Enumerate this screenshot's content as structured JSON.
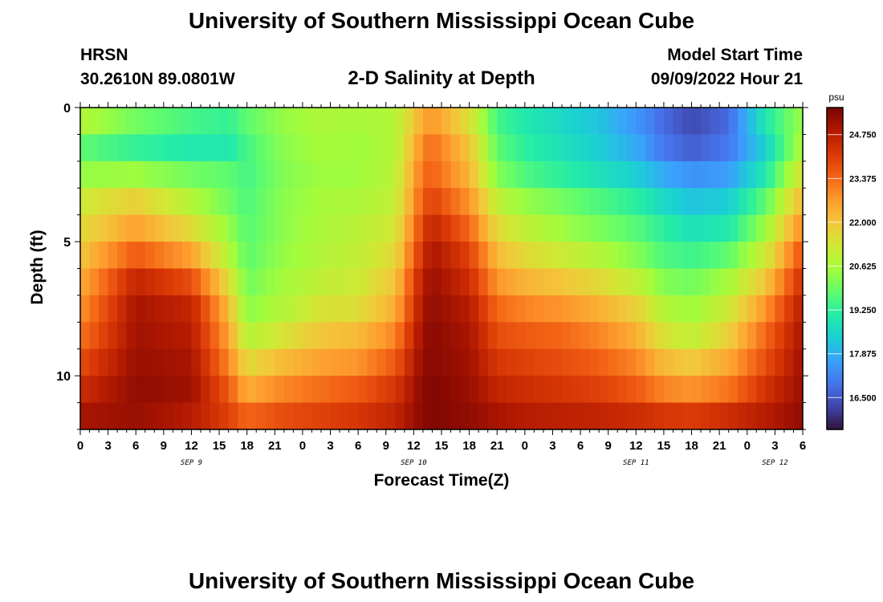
{
  "header": {
    "title": "University of Southern Mississippi Ocean Cube",
    "station": "HRSN",
    "coords": "30.2610N  89.0801W",
    "subtitle": "2-D Salinity at Depth",
    "model_start_label": "Model Start Time",
    "model_start_value": "09/09/2022 Hour 21"
  },
  "footer": {
    "title": "University of Southern Mississippi Ocean Cube"
  },
  "colors": {
    "map": [
      "#30123b",
      "#4145ab",
      "#4675ed",
      "#39a2fc",
      "#1bcfd4",
      "#24eca6",
      "#61fc6c",
      "#a4fc3b",
      "#d1e834",
      "#f3c63a",
      "#fe9b2d",
      "#f36315",
      "#d93806",
      "#b11901",
      "#7a0403"
    ]
  },
  "chart_data": {
    "type": "heatmap",
    "xlabel": "Forecast Time(Z)",
    "ylabel": "Depth (ft)",
    "colorbar_unit": "psu",
    "colorbar_ticks": [
      "24.750",
      "23.375",
      "22.000",
      "20.625",
      "19.250",
      "17.875",
      "16.500"
    ],
    "colorbar_range": [
      15.5,
      25.6
    ],
    "x_hours_range": [
      0,
      78
    ],
    "y_range": [
      0,
      12
    ],
    "y_ticks": [
      0,
      5,
      10
    ],
    "x_ticks": [
      "0",
      "3",
      "6",
      "9",
      "12",
      "15",
      "18",
      "21",
      "0",
      "3",
      "6",
      "9",
      "12",
      "15",
      "18",
      "21",
      "0",
      "3",
      "6",
      "9",
      "12",
      "15",
      "18",
      "21",
      "0",
      "3",
      "6"
    ],
    "date_labels": [
      {
        "label": "SEP 9",
        "hour": 12
      },
      {
        "label": "SEP 10",
        "hour": 36
      },
      {
        "label": "SEP 11",
        "hour": 60
      },
      {
        "label": "SEP 12",
        "hour": 75
      }
    ],
    "depth_layers_ft": [
      0.5,
      1.5,
      2.5,
      3.5,
      4.5,
      5.5,
      6.5,
      7.5,
      8.5,
      9.5,
      10.5,
      11.5
    ],
    "time_hours": [
      0,
      6,
      12,
      16,
      18,
      22,
      26,
      30,
      34,
      37,
      38,
      42,
      45,
      48,
      52,
      56,
      60,
      63,
      66,
      70,
      74,
      78
    ],
    "salinity": [
      [
        20.8,
        20.0,
        19.5,
        19.3,
        19.8,
        20.4,
        20.7,
        20.6,
        20.8,
        22.5,
        22.8,
        21.5,
        19.5,
        19.0,
        18.6,
        18.2,
        17.5,
        16.8,
        16.3,
        16.8,
        19.0,
        20.5
      ],
      [
        19.8,
        19.3,
        19.0,
        19.0,
        19.5,
        20.3,
        20.6,
        20.5,
        20.8,
        23.0,
        23.3,
        22.0,
        19.8,
        19.2,
        18.8,
        18.4,
        17.8,
        17.0,
        16.6,
        17.0,
        18.5,
        20.8
      ],
      [
        20.4,
        20.5,
        20.0,
        19.8,
        19.5,
        20.2,
        20.5,
        20.5,
        20.9,
        23.3,
        23.5,
        22.3,
        20.2,
        19.6,
        19.2,
        18.8,
        18.4,
        17.8,
        17.4,
        17.6,
        19.0,
        21.5
      ],
      [
        21.2,
        21.8,
        20.8,
        20.0,
        19.6,
        20.3,
        20.6,
        20.7,
        21.0,
        23.6,
        24.0,
        22.8,
        21.0,
        20.4,
        20.0,
        19.6,
        19.2,
        18.6,
        18.2,
        18.4,
        19.8,
        22.3
      ],
      [
        21.6,
        22.6,
        21.6,
        20.4,
        19.7,
        20.3,
        20.7,
        20.9,
        21.3,
        24.0,
        24.6,
        23.4,
        21.6,
        21.0,
        20.5,
        20.1,
        19.7,
        19.2,
        18.8,
        19.0,
        20.5,
        23.0
      ],
      [
        22.0,
        23.6,
        22.6,
        20.8,
        19.8,
        20.4,
        20.8,
        21.0,
        21.6,
        24.4,
        25.0,
        24.0,
        22.2,
        21.6,
        21.2,
        20.8,
        20.2,
        19.6,
        19.4,
        19.8,
        21.2,
        23.8
      ],
      [
        22.4,
        24.6,
        23.8,
        21.6,
        20.0,
        20.6,
        21.0,
        21.2,
        22.0,
        24.8,
        25.2,
        24.4,
        22.8,
        22.3,
        22.0,
        21.6,
        21.0,
        20.2,
        20.0,
        20.6,
        22.0,
        24.4
      ],
      [
        22.8,
        25.0,
        24.6,
        22.2,
        20.3,
        20.8,
        21.4,
        21.5,
        22.4,
        25.0,
        25.3,
        24.8,
        23.4,
        23.0,
        22.8,
        22.4,
        21.8,
        20.8,
        20.5,
        21.2,
        22.8,
        24.8
      ],
      [
        23.2,
        25.1,
        24.8,
        22.6,
        20.8,
        21.4,
        22.0,
        22.2,
        23.0,
        25.2,
        25.4,
        25.0,
        23.8,
        23.6,
        23.4,
        23.0,
        22.4,
        21.4,
        21.0,
        21.8,
        23.4,
        25.0
      ],
      [
        23.8,
        25.2,
        25.0,
        23.0,
        21.6,
        22.2,
        22.6,
        22.8,
        23.6,
        25.3,
        25.4,
        25.1,
        24.2,
        24.0,
        23.8,
        23.5,
        23.0,
        22.2,
        21.9,
        22.5,
        23.8,
        25.1
      ],
      [
        24.4,
        25.3,
        25.1,
        23.6,
        22.4,
        23.0,
        23.3,
        23.6,
        24.2,
        25.4,
        25.5,
        25.2,
        24.6,
        24.4,
        24.2,
        24.0,
        23.6,
        23.0,
        22.8,
        23.2,
        24.3,
        25.2
      ],
      [
        25.0,
        25.2,
        24.8,
        24.0,
        23.4,
        23.8,
        24.0,
        24.2,
        24.6,
        25.4,
        25.5,
        25.3,
        25.0,
        24.8,
        24.7,
        24.6,
        24.4,
        24.2,
        24.1,
        24.4,
        24.8,
        25.3
      ]
    ]
  }
}
